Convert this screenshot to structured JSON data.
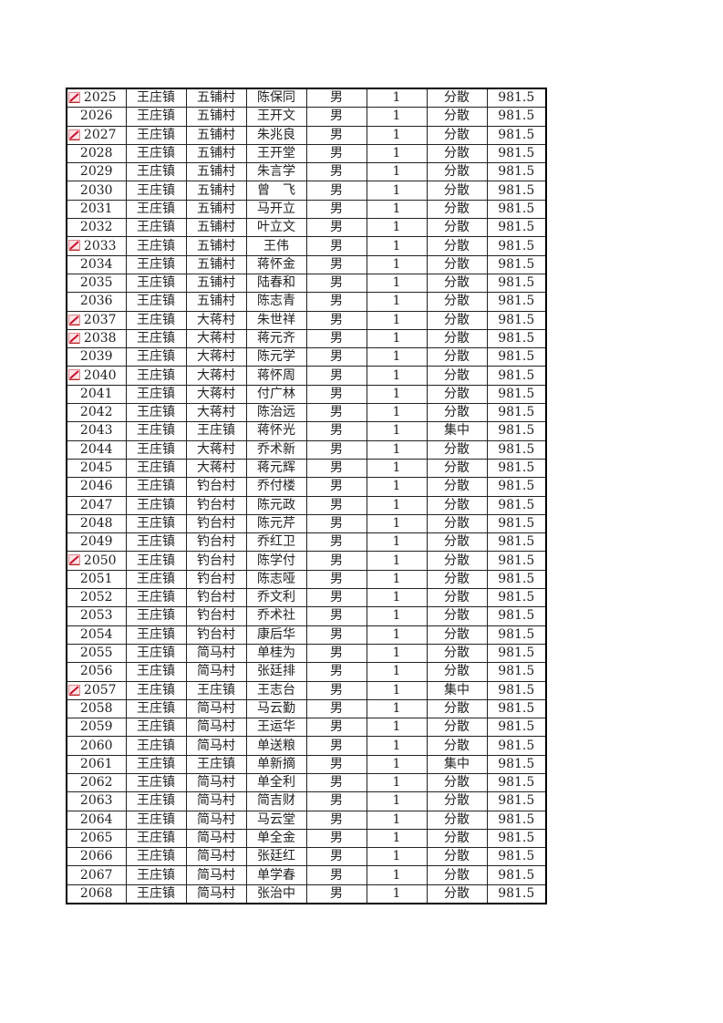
{
  "table": {
    "rows": [
      {
        "id": "2025",
        "town": "王庄镇",
        "village": "五铺村",
        "name": "陈保同",
        "gender": "男",
        "count": "1",
        "type": "分散",
        "amount": "981.5",
        "marked": true
      },
      {
        "id": "2026",
        "town": "王庄镇",
        "village": "五铺村",
        "name": "王开文",
        "gender": "男",
        "count": "1",
        "type": "分散",
        "amount": "981.5",
        "marked": false
      },
      {
        "id": "2027",
        "town": "王庄镇",
        "village": "五铺村",
        "name": "朱兆良",
        "gender": "男",
        "count": "1",
        "type": "分散",
        "amount": "981.5",
        "marked": true
      },
      {
        "id": "2028",
        "town": "王庄镇",
        "village": "五铺村",
        "name": "王开堂",
        "gender": "男",
        "count": "1",
        "type": "分散",
        "amount": "981.5",
        "marked": false
      },
      {
        "id": "2029",
        "town": "王庄镇",
        "village": "五铺村",
        "name": "朱言学",
        "gender": "男",
        "count": "1",
        "type": "分散",
        "amount": "981.5",
        "marked": false
      },
      {
        "id": "2030",
        "town": "王庄镇",
        "village": "五铺村",
        "name": "曾　飞",
        "gender": "男",
        "count": "1",
        "type": "分散",
        "amount": "981.5",
        "marked": false
      },
      {
        "id": "2031",
        "town": "王庄镇",
        "village": "五铺村",
        "name": "马开立",
        "gender": "男",
        "count": "1",
        "type": "分散",
        "amount": "981.5",
        "marked": false
      },
      {
        "id": "2032",
        "town": "王庄镇",
        "village": "五铺村",
        "name": "叶立文",
        "gender": "男",
        "count": "1",
        "type": "分散",
        "amount": "981.5",
        "marked": false
      },
      {
        "id": "2033",
        "town": "王庄镇",
        "village": "五铺村",
        "name": "王伟",
        "gender": "男",
        "count": "1",
        "type": "分散",
        "amount": "981.5",
        "marked": true
      },
      {
        "id": "2034",
        "town": "王庄镇",
        "village": "五铺村",
        "name": "蒋怀金",
        "gender": "男",
        "count": "1",
        "type": "分散",
        "amount": "981.5",
        "marked": false
      },
      {
        "id": "2035",
        "town": "王庄镇",
        "village": "五铺村",
        "name": "陆春和",
        "gender": "男",
        "count": "1",
        "type": "分散",
        "amount": "981.5",
        "marked": false
      },
      {
        "id": "2036",
        "town": "王庄镇",
        "village": "五铺村",
        "name": "陈志青",
        "gender": "男",
        "count": "1",
        "type": "分散",
        "amount": "981.5",
        "marked": false
      },
      {
        "id": "2037",
        "town": "王庄镇",
        "village": "大蒋村",
        "name": "朱世祥",
        "gender": "男",
        "count": "1",
        "type": "分散",
        "amount": "981.5",
        "marked": true
      },
      {
        "id": "2038",
        "town": "王庄镇",
        "village": "大蒋村",
        "name": "蒋元齐",
        "gender": "男",
        "count": "1",
        "type": "分散",
        "amount": "981.5",
        "marked": true
      },
      {
        "id": "2039",
        "town": "王庄镇",
        "village": "大蒋村",
        "name": "陈元学",
        "gender": "男",
        "count": "1",
        "type": "分散",
        "amount": "981.5",
        "marked": false
      },
      {
        "id": "2040",
        "town": "王庄镇",
        "village": "大蒋村",
        "name": "蒋怀周",
        "gender": "男",
        "count": "1",
        "type": "分散",
        "amount": "981.5",
        "marked": true
      },
      {
        "id": "2041",
        "town": "王庄镇",
        "village": "大蒋村",
        "name": "付广林",
        "gender": "男",
        "count": "1",
        "type": "分散",
        "amount": "981.5",
        "marked": false
      },
      {
        "id": "2042",
        "town": "王庄镇",
        "village": "大蒋村",
        "name": "陈治远",
        "gender": "男",
        "count": "1",
        "type": "分散",
        "amount": "981.5",
        "marked": false
      },
      {
        "id": "2043",
        "town": "王庄镇",
        "village": "王庄镇",
        "name": "蒋怀光",
        "gender": "男",
        "count": "1",
        "type": "集中",
        "amount": "981.5",
        "marked": false
      },
      {
        "id": "2044",
        "town": "王庄镇",
        "village": "大蒋村",
        "name": "乔术新",
        "gender": "男",
        "count": "1",
        "type": "分散",
        "amount": "981.5",
        "marked": false
      },
      {
        "id": "2045",
        "town": "王庄镇",
        "village": "大蒋村",
        "name": "蒋元辉",
        "gender": "男",
        "count": "1",
        "type": "分散",
        "amount": "981.5",
        "marked": false
      },
      {
        "id": "2046",
        "town": "王庄镇",
        "village": "钓台村",
        "name": "乔付楼",
        "gender": "男",
        "count": "1",
        "type": "分散",
        "amount": "981.5",
        "marked": false
      },
      {
        "id": "2047",
        "town": "王庄镇",
        "village": "钓台村",
        "name": "陈元政",
        "gender": "男",
        "count": "1",
        "type": "分散",
        "amount": "981.5",
        "marked": false
      },
      {
        "id": "2048",
        "town": "王庄镇",
        "village": "钓台村",
        "name": "陈元芹",
        "gender": "男",
        "count": "1",
        "type": "分散",
        "amount": "981.5",
        "marked": false
      },
      {
        "id": "2049",
        "town": "王庄镇",
        "village": "钓台村",
        "name": "乔红卫",
        "gender": "男",
        "count": "1",
        "type": "分散",
        "amount": "981.5",
        "marked": false
      },
      {
        "id": "2050",
        "town": "王庄镇",
        "village": "钓台村",
        "name": "陈学付",
        "gender": "男",
        "count": "1",
        "type": "分散",
        "amount": "981.5",
        "marked": true
      },
      {
        "id": "2051",
        "town": "王庄镇",
        "village": "钓台村",
        "name": "陈志哑",
        "gender": "男",
        "count": "1",
        "type": "分散",
        "amount": "981.5",
        "marked": false
      },
      {
        "id": "2052",
        "town": "王庄镇",
        "village": "钓台村",
        "name": "乔文利",
        "gender": "男",
        "count": "1",
        "type": "分散",
        "amount": "981.5",
        "marked": false
      },
      {
        "id": "2053",
        "town": "王庄镇",
        "village": "钓台村",
        "name": "乔术社",
        "gender": "男",
        "count": "1",
        "type": "分散",
        "amount": "981.5",
        "marked": false
      },
      {
        "id": "2054",
        "town": "王庄镇",
        "village": "钓台村",
        "name": "康后华",
        "gender": "男",
        "count": "1",
        "type": "分散",
        "amount": "981.5",
        "marked": false
      },
      {
        "id": "2055",
        "town": "王庄镇",
        "village": "简马村",
        "name": "单桂为",
        "gender": "男",
        "count": "1",
        "type": "分散",
        "amount": "981.5",
        "marked": false
      },
      {
        "id": "2056",
        "town": "王庄镇",
        "village": "简马村",
        "name": "张廷排",
        "gender": "男",
        "count": "1",
        "type": "分散",
        "amount": "981.5",
        "marked": false
      },
      {
        "id": "2057",
        "town": "王庄镇",
        "village": "王庄镇",
        "name": "王志台",
        "gender": "男",
        "count": "1",
        "type": "集中",
        "amount": "981.5",
        "marked": true
      },
      {
        "id": "2058",
        "town": "王庄镇",
        "village": "简马村",
        "name": "马云勤",
        "gender": "男",
        "count": "1",
        "type": "分散",
        "amount": "981.5",
        "marked": false
      },
      {
        "id": "2059",
        "town": "王庄镇",
        "village": "简马村",
        "name": "王运华",
        "gender": "男",
        "count": "1",
        "type": "分散",
        "amount": "981.5",
        "marked": false
      },
      {
        "id": "2060",
        "town": "王庄镇",
        "village": "简马村",
        "name": "单送粮",
        "gender": "男",
        "count": "1",
        "type": "分散",
        "amount": "981.5",
        "marked": false
      },
      {
        "id": "2061",
        "town": "王庄镇",
        "village": "王庄镇",
        "name": "单新摘",
        "gender": "男",
        "count": "1",
        "type": "集中",
        "amount": "981.5",
        "marked": false
      },
      {
        "id": "2062",
        "town": "王庄镇",
        "village": "简马村",
        "name": "单全利",
        "gender": "男",
        "count": "1",
        "type": "分散",
        "amount": "981.5",
        "marked": false
      },
      {
        "id": "2063",
        "town": "王庄镇",
        "village": "简马村",
        "name": "简吉财",
        "gender": "男",
        "count": "1",
        "type": "分散",
        "amount": "981.5",
        "marked": false
      },
      {
        "id": "2064",
        "town": "王庄镇",
        "village": "简马村",
        "name": "马云堂",
        "gender": "男",
        "count": "1",
        "type": "分散",
        "amount": "981.5",
        "marked": false
      },
      {
        "id": "2065",
        "town": "王庄镇",
        "village": "简马村",
        "name": "单全金",
        "gender": "男",
        "count": "1",
        "type": "分散",
        "amount": "981.5",
        "marked": false
      },
      {
        "id": "2066",
        "town": "王庄镇",
        "village": "简马村",
        "name": "张廷红",
        "gender": "男",
        "count": "1",
        "type": "分散",
        "amount": "981.5",
        "marked": false
      },
      {
        "id": "2067",
        "town": "王庄镇",
        "village": "简马村",
        "name": "单学春",
        "gender": "男",
        "count": "1",
        "type": "分散",
        "amount": "981.5",
        "marked": false
      },
      {
        "id": "2068",
        "town": "王庄镇",
        "village": "简马村",
        "name": "张治中",
        "gender": "男",
        "count": "1",
        "type": "分散",
        "amount": "981.5",
        "marked": false
      }
    ]
  },
  "colors": {
    "mark": "#c8102e",
    "border": "#000000"
  },
  "icons": {
    "mark": "edit-pencil-icon"
  }
}
